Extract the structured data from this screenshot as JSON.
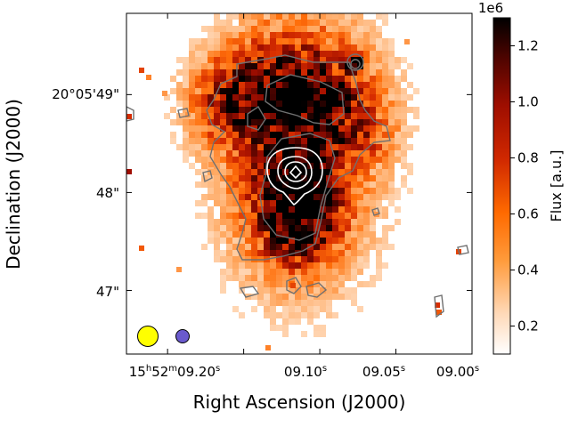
{
  "chart_data": {
    "type": "heatmap",
    "description_title": "",
    "xlabel": "Right Ascension (J2000)",
    "ylabel": "Declination (J2000)",
    "x_ticks": [
      {
        "value_s": 9.2,
        "prefix": "15",
        "h": "h",
        "mid": "52",
        "m": "m",
        "main": "09.20",
        "sup": "s"
      },
      {
        "value_s": 9.1,
        "prefix": "",
        "h": "",
        "mid": "",
        "m": "",
        "main": "09.10",
        "sup": "s"
      },
      {
        "value_s": 9.05,
        "prefix": "",
        "h": "",
        "mid": "",
        "m": "",
        "main": "09.05",
        "sup": "s"
      },
      {
        "value_s": 9.0,
        "prefix": "",
        "h": "",
        "mid": "",
        "m": "",
        "main": "09.00",
        "sup": "s"
      }
    ],
    "y_ticks": [
      {
        "value_arcsec": 49,
        "label": "20°05'49\""
      },
      {
        "value_arcsec": 48,
        "label": "48\""
      },
      {
        "value_arcsec": 47,
        "label": "47\""
      }
    ],
    "x_range_s": [
      9.227,
      9.0
    ],
    "y_range_arcsec": [
      46.35,
      49.83
    ],
    "colorbar": {
      "label": "Flux [a.u.]",
      "exponent": "1e6",
      "min": 0.1,
      "max": 1.3,
      "ticks": [
        0.2,
        0.4,
        0.6,
        0.8,
        1.0,
        1.2
      ],
      "tick_labels": [
        "0.2",
        "0.4",
        "0.6",
        "0.8",
        "1.0",
        "1.2"
      ],
      "colormap": "gist_heat_r"
    },
    "emission_components": [
      {
        "name": "main-clump-south",
        "ra_s": 9.107,
        "dec": 47.8,
        "peak": 1.0
      },
      {
        "name": "main-clump-center",
        "ra_s": 9.11,
        "dec": 48.3,
        "peak": 0.85
      },
      {
        "name": "north-knot-west",
        "ra_s": 9.118,
        "dec": 49.0,
        "peak": 0.9
      },
      {
        "name": "north-knot-east",
        "ra_s": 9.089,
        "dec": 48.95,
        "peak": 0.75
      },
      {
        "name": "north-knot-far-west",
        "ra_s": 9.146,
        "dec": 48.8,
        "peak": 0.7
      },
      {
        "name": "compact-source-ne",
        "ra_s": 9.07,
        "dec": 49.33,
        "peak": 0.9
      }
    ],
    "white_contours": {
      "center_ra_s": 9.106,
      "center_dec": 48.2,
      "levels": 4
    },
    "beams": [
      {
        "name": "yellow-beam",
        "color": "#ffff00",
        "ra_s": 9.217,
        "dec": 46.55
      },
      {
        "name": "blue-beam",
        "color": "#6a5acd",
        "ra_s": 9.196,
        "dec": 46.55
      }
    ]
  }
}
